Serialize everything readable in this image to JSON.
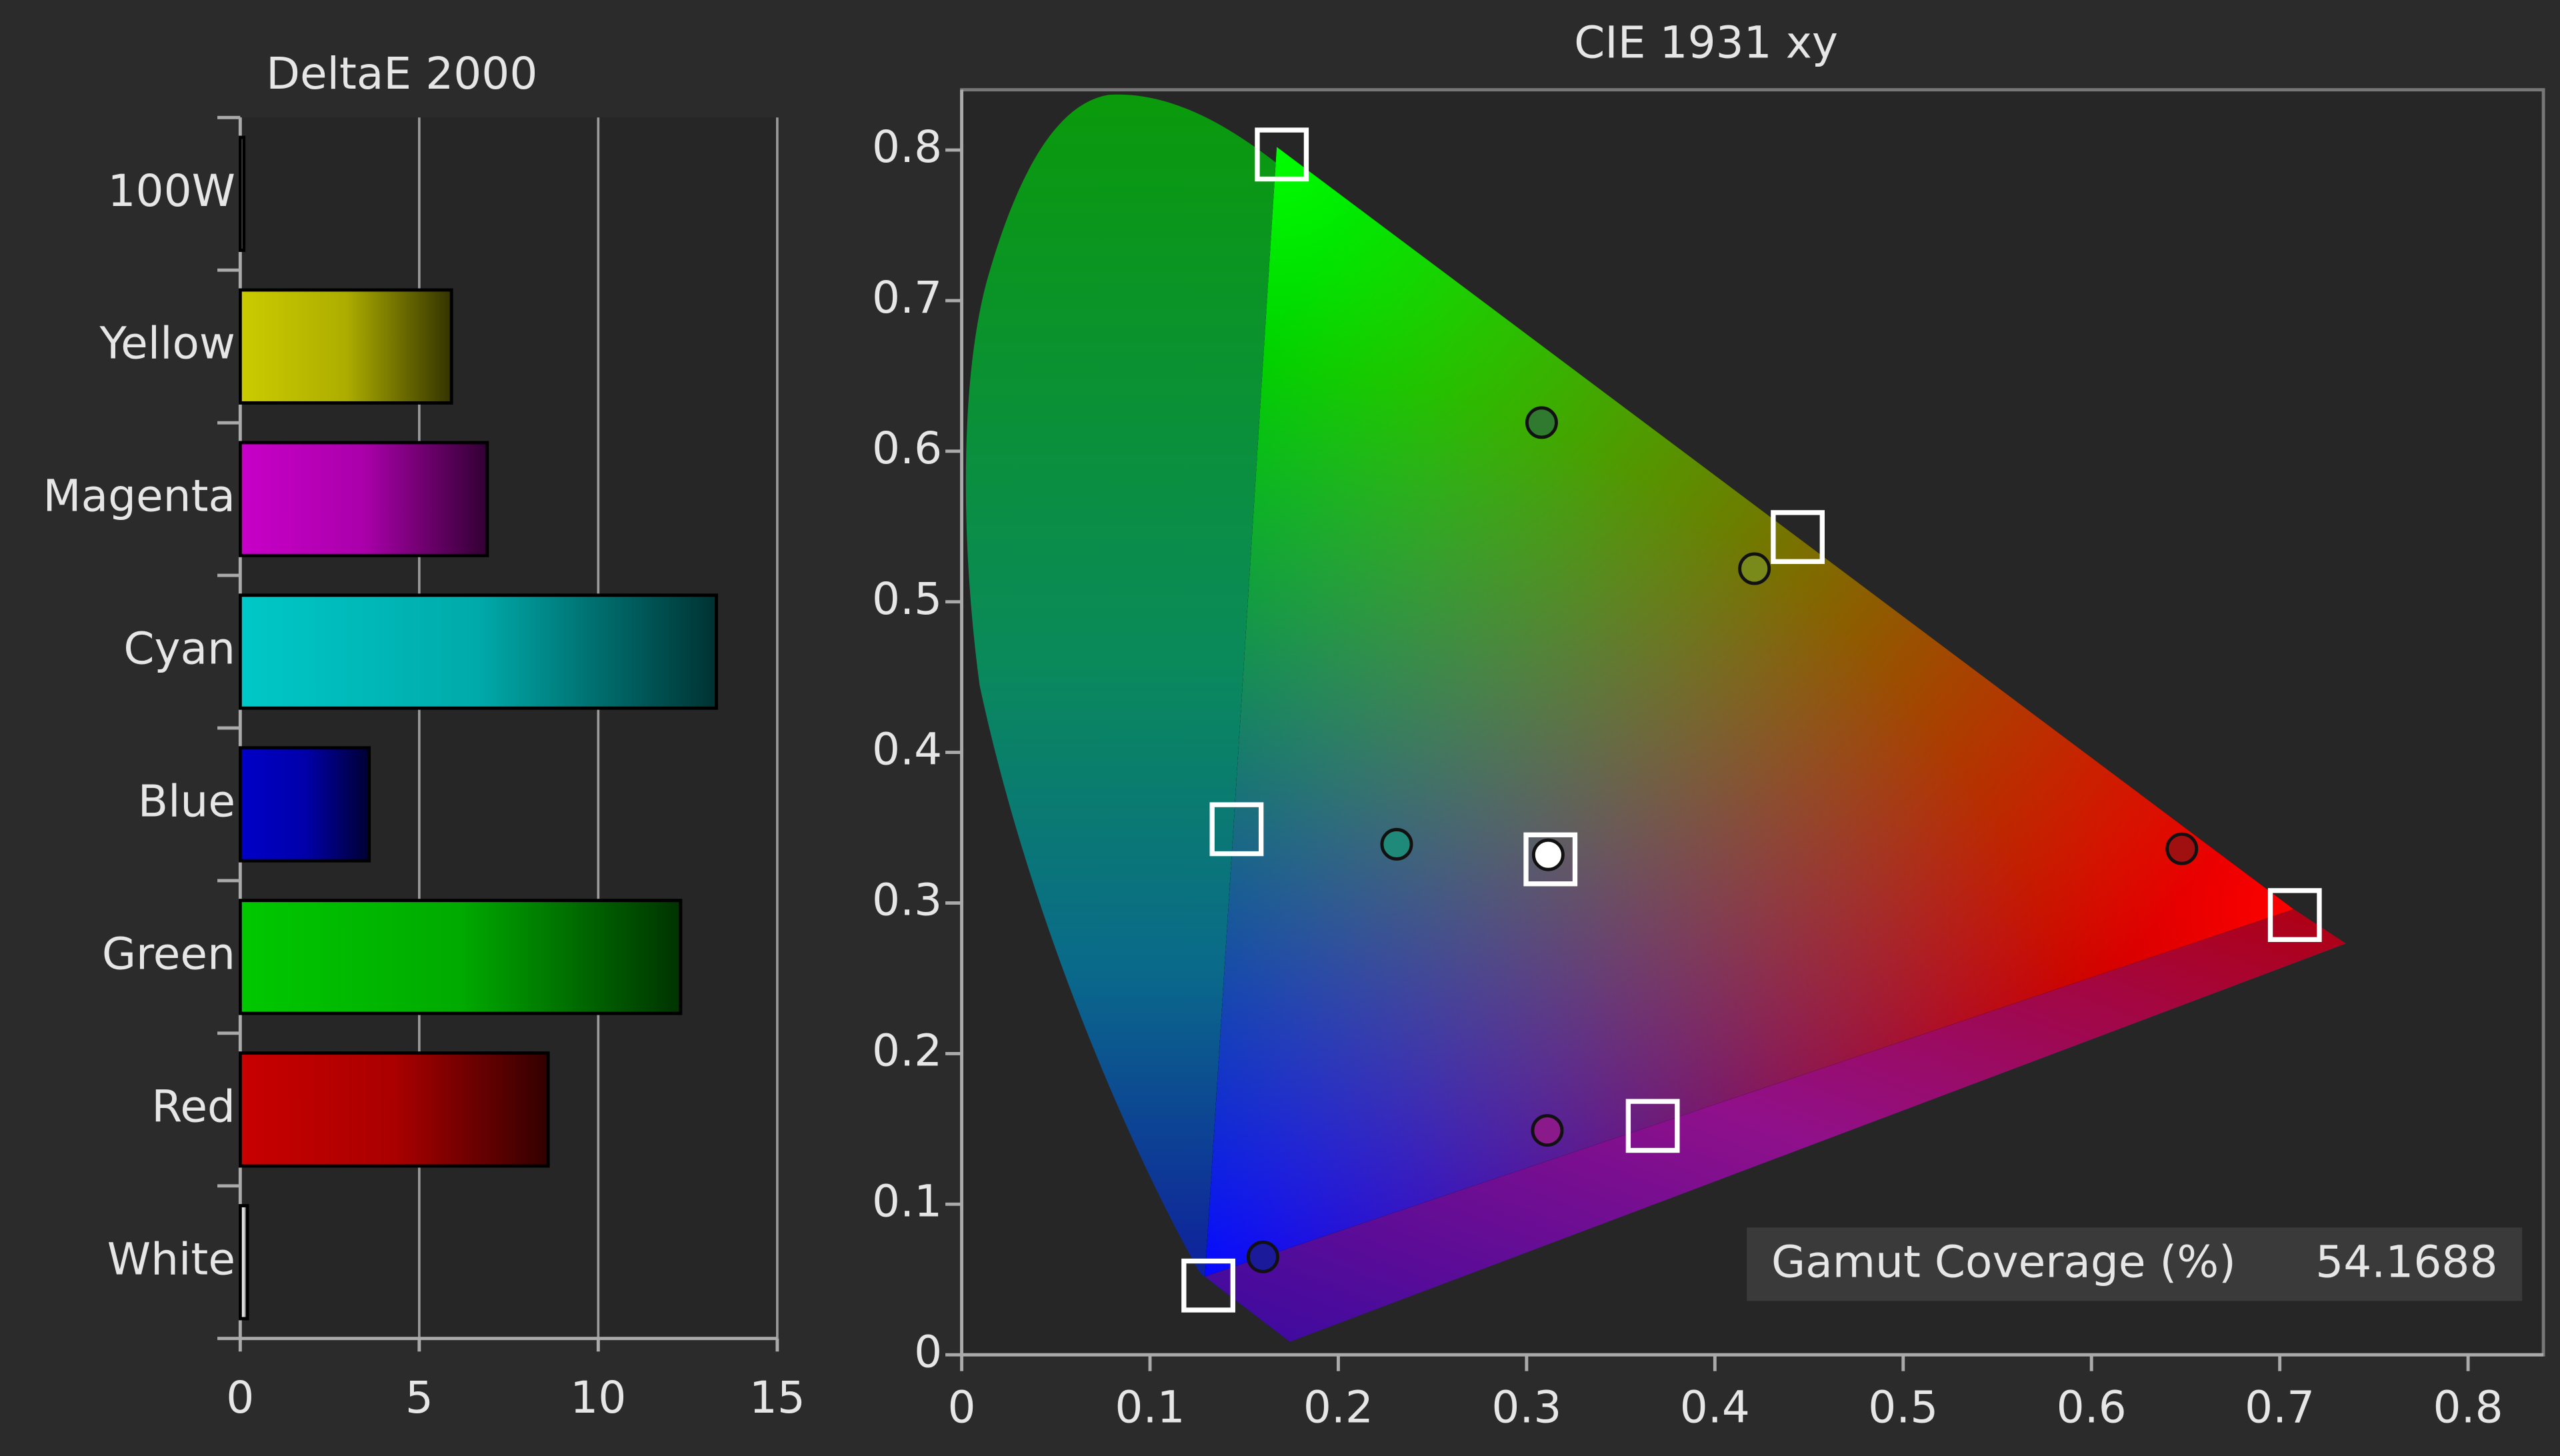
{
  "chart_data": [
    {
      "type": "bar",
      "orientation": "horizontal",
      "title": "DeltaE 2000",
      "categories": [
        "100W",
        "Yellow",
        "Magenta",
        "Cyan",
        "Blue",
        "Green",
        "Red",
        "White"
      ],
      "values": [
        0.1,
        5.9,
        6.9,
        13.3,
        3.6,
        12.3,
        8.6,
        0.2
      ],
      "colors": [
        "#ffffff",
        "#cccc00",
        "#c800c8",
        "#00c8c8",
        "#0000c8",
        "#00c800",
        "#c80000",
        "#ffffff"
      ],
      "xlim": [
        0,
        15
      ],
      "xticks": [
        0,
        5,
        10,
        15
      ],
      "grid": true
    },
    {
      "type": "scatter",
      "title": "CIE 1931 xy",
      "xlim": [
        0,
        0.84
      ],
      "ylim": [
        0,
        0.84
      ],
      "xticks": [
        0,
        0.1,
        0.2,
        0.3,
        0.4,
        0.5,
        0.6,
        0.7,
        0.8
      ],
      "yticks": [
        0,
        0.1,
        0.2,
        0.3,
        0.4,
        0.5,
        0.6,
        0.7,
        0.8
      ],
      "series": [
        {
          "marker": "square",
          "color": "#ffffff",
          "x": [
            0.17,
            0.708,
            0.131,
            0.444,
            0.146,
            0.367,
            0.3127
          ],
          "values": [
            0.797,
            0.292,
            0.046,
            0.543,
            0.349,
            0.152,
            0.329
          ]
        },
        {
          "marker": "circle",
          "colors": [
            "#2f7a2f",
            "#7a8a1a",
            "#1f8a7a",
            "#ffffff",
            "#a01010",
            "#8a1a8a",
            "#1a1a9a"
          ],
          "x": [
            0.308,
            0.421,
            0.231,
            0.3115,
            0.648,
            0.311,
            0.16
          ],
          "values": [
            0.619,
            0.522,
            0.339,
            0.332,
            0.336,
            0.149,
            0.065
          ]
        }
      ],
      "annotation": {
        "label": "Gamut Coverage (%)",
        "value": 54.1688
      }
    }
  ]
}
